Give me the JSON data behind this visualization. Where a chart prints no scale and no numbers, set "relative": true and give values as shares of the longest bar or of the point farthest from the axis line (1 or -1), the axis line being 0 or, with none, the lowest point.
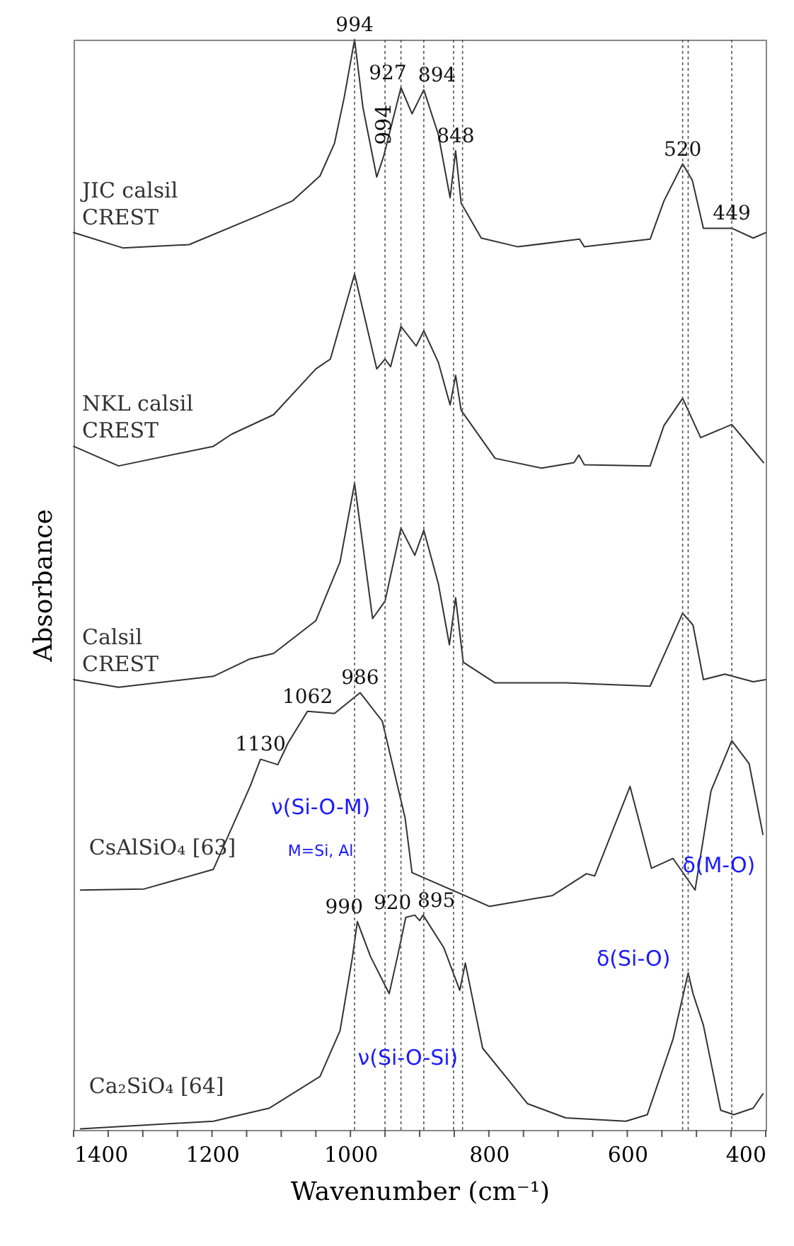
{
  "chart_data": {
    "type": "line",
    "relative": true,
    "xlabel": "Wavenumber (cm⁻¹)",
    "ylabel": "Absorbance",
    "xlim": [
      1400,
      400
    ],
    "xticks": [
      1400,
      {
        "value": 1350,
        "label": null
      },
      {
        "value": 1300,
        "label": null
      },
      {
        "value": 1250,
        "label": null
      },
      1200,
      {
        "value": 1150,
        "label": null
      },
      {
        "value": 1100,
        "label": null
      },
      {
        "value": 1050,
        "label": null
      },
      1000,
      {
        "value": 950,
        "label": null
      },
      {
        "value": 900,
        "label": null
      },
      {
        "value": 850,
        "label": null
      },
      800,
      {
        "value": 750,
        "label": null
      },
      {
        "value": 700,
        "label": null
      },
      {
        "value": 650,
        "label": null
      },
      600,
      {
        "value": 550,
        "label": null
      },
      {
        "value": 500,
        "label": null
      },
      {
        "value": 450,
        "label": null
      },
      400
    ],
    "grid": false,
    "marker": "none",
    "line_style": "solid",
    "series": [
      {
        "name": "JIC calsil\nCREST",
        "color": "#333333",
        "x": [
          1400,
          1329,
          1233,
          1131,
          1084,
          1044,
          1023,
          1009,
          994,
          982,
          962,
          952,
          927,
          911,
          894,
          873,
          856,
          848,
          840,
          811,
          758,
          669,
          662,
          567,
          547,
          520,
          506,
          490,
          449,
          418,
          400
        ],
        "values": [
          0.823,
          0.809,
          0.812,
          0.839,
          0.852,
          0.875,
          0.905,
          0.947,
          1.0,
          0.938,
          0.874,
          0.893,
          0.956,
          0.932,
          0.954,
          0.913,
          0.855,
          0.898,
          0.85,
          0.818,
          0.81,
          0.817,
          0.81,
          0.817,
          0.852,
          0.886,
          0.871,
          0.827,
          0.827,
          0.818,
          0.823
        ]
      },
      {
        "name": "NKL calsil\nCREST",
        "color": "#333333",
        "x": [
          1400,
          1335,
          1198,
          1172,
          1111,
          1050,
          1029,
          994,
          962,
          950,
          942,
          927,
          905,
          894,
          873,
          856,
          848,
          840,
          791,
          724,
          677,
          670,
          662,
          567,
          547,
          520,
          494,
          449,
          420,
          403
        ],
        "values": [
          0.627,
          0.609,
          0.627,
          0.638,
          0.656,
          0.698,
          0.707,
          0.785,
          0.698,
          0.707,
          0.7,
          0.737,
          0.719,
          0.733,
          0.704,
          0.665,
          0.692,
          0.66,
          0.616,
          0.607,
          0.612,
          0.619,
          0.61,
          0.609,
          0.646,
          0.671,
          0.635,
          0.647,
          0.625,
          0.612
        ]
      },
      {
        "name": "Calsil\nCREST",
        "color": "#333333",
        "x": [
          1400,
          1335,
          1198,
          1145,
          1111,
          1050,
          1015,
          994,
          968,
          950,
          927,
          907,
          894,
          873,
          857,
          848,
          837,
          791,
          689,
          567,
          543,
          520,
          505,
          490,
          459,
          418,
          400
        ],
        "values": [
          0.413,
          0.406,
          0.416,
          0.432,
          0.437,
          0.467,
          0.521,
          0.593,
          0.469,
          0.485,
          0.552,
          0.527,
          0.55,
          0.501,
          0.445,
          0.488,
          0.429,
          0.41,
          0.41,
          0.407,
          0.441,
          0.474,
          0.463,
          0.413,
          0.418,
          0.411,
          0.413
        ]
      },
      {
        "name": "CsAlSiO₄ [63]",
        "color": "#333333",
        "x": [
          1390,
          1298,
          1198,
          1145,
          1130,
          1105,
          1090,
          1062,
          1023,
          986,
          954,
          921,
          911,
          799,
          708,
          659,
          647,
          596,
          565,
          534,
          502,
          479,
          449,
          424,
          404
        ],
        "values": [
          0.22,
          0.221,
          0.239,
          0.315,
          0.34,
          0.335,
          0.355,
          0.384,
          0.382,
          0.401,
          0.375,
          0.286,
          0.236,
          0.205,
          0.215,
          0.235,
          0.233,
          0.315,
          0.24,
          0.249,
          0.22,
          0.311,
          0.357,
          0.336,
          0.271
        ]
      },
      {
        "name": "Ca₂SiO₄ [64]",
        "color": "#333333",
        "x": [
          1390,
          1198,
          1117,
          1044,
          1015,
          997,
          990,
          971,
          944,
          932,
          920,
          907,
          900,
          895,
          865,
          842,
          834,
          809,
          744,
          689,
          602,
          571,
          534,
          512,
          505,
          490,
          465,
          446,
          418,
          404
        ],
        "values": [
          0.001,
          0.008,
          0.02,
          0.049,
          0.091,
          0.159,
          0.191,
          0.159,
          0.125,
          0.159,
          0.195,
          0.197,
          0.192,
          0.197,
          0.167,
          0.128,
          0.153,
          0.075,
          0.024,
          0.011,
          0.008,
          0.014,
          0.083,
          0.144,
          0.125,
          0.096,
          0.018,
          0.014,
          0.02,
          0.033
        ]
      }
    ],
    "ref_lines": [
      {
        "axis": "x",
        "value": 994,
        "color": "#555555",
        "line_style": "dotted"
      },
      {
        "axis": "x",
        "value": 950,
        "color": "#555555",
        "line_style": "dotted"
      },
      {
        "axis": "x",
        "value": 927,
        "color": "#555555",
        "line_style": "dotted"
      },
      {
        "axis": "x",
        "value": 894,
        "color": "#555555",
        "line_style": "dotted"
      },
      {
        "axis": "x",
        "value": 851,
        "color": "#555555",
        "line_style": "dotted"
      },
      {
        "axis": "x",
        "value": 838,
        "color": "#555555",
        "line_style": "dotted"
      },
      {
        "axis": "x",
        "value": 520,
        "color": "#555555",
        "line_style": "dotted"
      },
      {
        "axis": "x",
        "value": 512,
        "color": "#555555",
        "line_style": "dotted"
      },
      {
        "axis": "x",
        "value": 449,
        "color": "#555555",
        "line_style": "dotted"
      }
    ],
    "annotations": [
      {
        "text": "994",
        "x": 994,
        "y": 1.0
      },
      {
        "text": "994",
        "x": 952,
        "y": 0.893
      },
      {
        "text": "927",
        "x": 927,
        "y": 0.956
      },
      {
        "text": "894",
        "x": 894,
        "y": 0.954
      },
      {
        "text": "848",
        "x": 848,
        "y": 0.898
      },
      {
        "text": "520",
        "x": 520,
        "y": 0.886
      },
      {
        "text": "449",
        "x": 449,
        "y": 0.827
      },
      {
        "text": "1130",
        "x": 1130,
        "y": 0.34
      },
      {
        "text": "1062",
        "x": 1062,
        "y": 0.384
      },
      {
        "text": "986",
        "x": 986,
        "y": 0.401
      },
      {
        "text": "990",
        "x": 990,
        "y": 0.191
      },
      {
        "text": "920",
        "x": 920,
        "y": 0.195
      },
      {
        "text": "895",
        "x": 895,
        "y": 0.197
      },
      "ν(Si-O-M)",
      "M=Si, Al",
      "δ(M-O)",
      "δ(Si-O)",
      "ν(Si-O-Si)"
    ]
  }
}
